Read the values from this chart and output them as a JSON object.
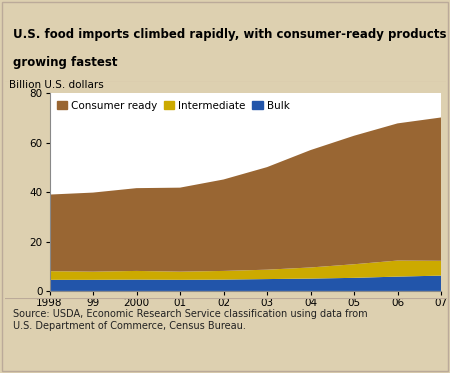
{
  "years": [
    1998,
    1999,
    2000,
    2001,
    2002,
    2003,
    2004,
    2005,
    2006,
    2007
  ],
  "year_labels": [
    "1998",
    "99",
    "2000",
    "01",
    "02",
    "03",
    "04",
    "05",
    "06",
    "07"
  ],
  "bulk": [
    4.5,
    4.5,
    4.6,
    4.5,
    4.6,
    4.8,
    5.0,
    5.3,
    5.8,
    6.2
  ],
  "intermediate": [
    3.5,
    3.3,
    3.5,
    3.3,
    3.5,
    3.8,
    4.5,
    5.5,
    6.5,
    6.0
  ],
  "consumer_ready": [
    31.0,
    32.0,
    33.5,
    34.0,
    37.0,
    41.5,
    47.5,
    52.0,
    55.5,
    58.0
  ],
  "bulk_color": "#2255aa",
  "intermediate_color": "#ccaa00",
  "consumer_ready_color": "#996633",
  "ylim": [
    0,
    80
  ],
  "yticks": [
    0,
    20,
    40,
    60,
    80
  ],
  "ylabel_text": "Billion U.S. dollars",
  "title_line1": "U.S. food imports climbed rapidly, with consumer-ready products",
  "title_line2": "growing fastest",
  "title_bg": "#ddd0b0",
  "chart_bg": "#ffffff",
  "outer_bg": "#ddd0b0",
  "border_color": "#ccbbaa",
  "source_text": "Source: USDA, Economic Research Service classification using data from\nU.S. Department of Commerce, Census Bureau.",
  "legend_labels": [
    "Consumer ready",
    "Intermediate",
    "Bulk"
  ]
}
